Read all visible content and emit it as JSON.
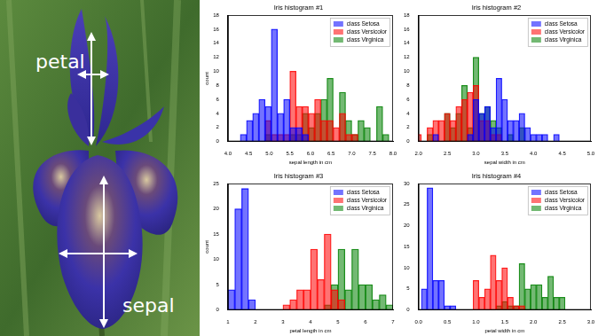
{
  "photo": {
    "petal_label": "petal",
    "sepal_label": "sepal"
  },
  "chart_data": [
    {
      "type": "histogram",
      "title": "Iris histogram #1",
      "xlabel": "sepal length in cm",
      "ylabel": "count",
      "bins": [
        4.3,
        4.45,
        4.6,
        4.75,
        4.9,
        5.05,
        5.2,
        5.35,
        5.5,
        5.65,
        5.8,
        5.95,
        6.1,
        6.25,
        6.4,
        6.55,
        6.7,
        6.85,
        7.0,
        7.15,
        7.3,
        7.45,
        7.6,
        7.75,
        7.9
      ],
      "series": [
        {
          "name": "class Setosa",
          "color": "#0000ff",
          "values": [
            1,
            3,
            4,
            6,
            5,
            16,
            4,
            6,
            2,
            2,
            1,
            0,
            0,
            0,
            0,
            0,
            0,
            0,
            0,
            0,
            0,
            0,
            0,
            0
          ]
        },
        {
          "name": "class Versicolor",
          "color": "#ff0000",
          "values": [
            0,
            0,
            0,
            0,
            3,
            1,
            1,
            1,
            10,
            5,
            5,
            4,
            6,
            3,
            3,
            2,
            4,
            1,
            1,
            0,
            0,
            0,
            0,
            0
          ]
        },
        {
          "name": "class Virginica",
          "color": "#008000",
          "values": [
            0,
            0,
            0,
            0,
            1,
            0,
            0,
            0,
            1,
            1,
            4,
            2,
            4,
            6,
            9,
            0,
            7,
            3,
            1,
            3,
            2,
            0,
            5,
            1
          ]
        }
      ],
      "xlim": [
        4,
        8
      ],
      "xticks": [
        {
          "value": 4,
          "label": "4.0"
        },
        4.5,
        {
          "value": 5,
          "label": "5.0"
        },
        5.5,
        {
          "value": 6,
          "label": "6.0"
        },
        6.5,
        {
          "value": 7,
          "label": "7.0"
        },
        7.5,
        {
          "value": 8,
          "label": "8.0"
        }
      ],
      "ylim": [
        0,
        18
      ],
      "yticks": [
        0,
        2,
        4,
        6,
        8,
        10,
        12,
        14,
        16,
        18
      ],
      "grid": false,
      "legend": "upper right"
    },
    {
      "type": "histogram",
      "title": "Iris histogram #2",
      "xlabel": "sepal width in cm",
      "bins": [
        1.95,
        2.05,
        2.15,
        2.25,
        2.35,
        2.45,
        2.55,
        2.65,
        2.75,
        2.85,
        2.95,
        3.05,
        3.15,
        3.25,
        3.35,
        3.45,
        3.55,
        3.65,
        3.75,
        3.85,
        3.95,
        4.05,
        4.15,
        4.25,
        4.35,
        4.45
      ],
      "series": [
        {
          "name": "class Setosa",
          "color": "#0000ff",
          "values": [
            0,
            0,
            0,
            1,
            0,
            0,
            0,
            0,
            0,
            1,
            6,
            4,
            5,
            2,
            9,
            6,
            3,
            3,
            4,
            2,
            1,
            1,
            1,
            0,
            1
          ]
        },
        {
          "name": "class Versicolor",
          "color": "#ff0000",
          "values": [
            1,
            0,
            2,
            3,
            3,
            4,
            3,
            5,
            6,
            7,
            8,
            3,
            3,
            1,
            1,
            0,
            0,
            0,
            0,
            0,
            0,
            0,
            0,
            0,
            0
          ]
        },
        {
          "name": "class Virginica",
          "color": "#008000",
          "values": [
            0,
            0,
            1,
            0,
            0,
            4,
            2,
            4,
            8,
            2,
            12,
            4,
            5,
            3,
            2,
            0,
            1,
            0,
            2,
            0,
            0,
            0,
            0,
            0,
            0
          ]
        }
      ],
      "xlim": [
        2,
        5
      ],
      "xticks": [
        {
          "value": 2,
          "label": "2.0"
        },
        2.5,
        {
          "value": 3,
          "label": "3.0"
        },
        3.5,
        {
          "value": 4,
          "label": "4.0"
        },
        4.5,
        {
          "value": 5,
          "label": "5.0"
        }
      ],
      "ylim": [
        0,
        18
      ],
      "yticks": [
        0,
        2,
        4,
        6,
        8,
        10,
        12,
        14,
        16,
        18
      ],
      "grid": false,
      "legend": "upper right"
    },
    {
      "type": "histogram",
      "title": "Iris histogram #3",
      "xlabel": "petal length in cm",
      "ylabel": "count",
      "bins": [
        1,
        1.25,
        1.5,
        1.75,
        2,
        2.25,
        2.5,
        2.75,
        3,
        3.25,
        3.5,
        3.75,
        4,
        4.25,
        4.5,
        4.75,
        5,
        5.25,
        5.5,
        5.75,
        6,
        6.25,
        6.5,
        6.75,
        7
      ],
      "series": [
        {
          "name": "class Setosa",
          "color": "#0000ff",
          "values": [
            4,
            20,
            24,
            2,
            0,
            0,
            0,
            0,
            0,
            0,
            0,
            0,
            0,
            0,
            0,
            0,
            0,
            0,
            0,
            0,
            0,
            0,
            0,
            0
          ]
        },
        {
          "name": "class Versicolor",
          "color": "#ff0000",
          "values": [
            0,
            0,
            0,
            0,
            0,
            0,
            0,
            0,
            1,
            2,
            4,
            4,
            12,
            6,
            15,
            4,
            2,
            0,
            0,
            0,
            0,
            0,
            0,
            0
          ]
        },
        {
          "name": "class Virginica",
          "color": "#008000",
          "values": [
            0,
            0,
            0,
            0,
            0,
            0,
            0,
            0,
            0,
            0,
            0,
            0,
            0,
            0,
            1,
            5,
            12,
            4,
            12,
            5,
            5,
            2,
            3,
            1
          ]
        }
      ],
      "xlim": [
        1,
        7
      ],
      "xticks": [
        1,
        2,
        3,
        4,
        5,
        6,
        7
      ],
      "ylim": [
        0,
        25
      ],
      "yticks": [
        0,
        5,
        10,
        15,
        20,
        25
      ],
      "grid": false,
      "legend": "upper right"
    },
    {
      "type": "histogram",
      "title": "Iris histogram #4",
      "xlabel": "petal width in cm",
      "bins": [
        0.05,
        0.15,
        0.25,
        0.35,
        0.45,
        0.55,
        0.65,
        0.75,
        0.85,
        0.95,
        1.05,
        1.15,
        1.25,
        1.35,
        1.45,
        1.55,
        1.65,
        1.75,
        1.85,
        1.95,
        2.05,
        2.15,
        2.25,
        2.35,
        2.45,
        2.55
      ],
      "series": [
        {
          "name": "class Setosa",
          "color": "#0000ff",
          "values": [
            5,
            29,
            7,
            7,
            1,
            1,
            0,
            0,
            0,
            0,
            0,
            0,
            0,
            0,
            0,
            0,
            0,
            0,
            0,
            0,
            0,
            0,
            0,
            0,
            0
          ]
        },
        {
          "name": "class Versicolor",
          "color": "#ff0000",
          "values": [
            0,
            0,
            0,
            0,
            0,
            0,
            0,
            0,
            0,
            7,
            3,
            5,
            13,
            7,
            10,
            3,
            1,
            1,
            0,
            0,
            0,
            0,
            0,
            0,
            0
          ]
        },
        {
          "name": "class Virginica",
          "color": "#008000",
          "values": [
            0,
            0,
            0,
            0,
            0,
            0,
            0,
            0,
            0,
            0,
            0,
            0,
            0,
            1,
            2,
            1,
            1,
            11,
            5,
            6,
            6,
            3,
            8,
            3,
            3
          ]
        }
      ],
      "xlim": [
        0,
        3
      ],
      "xticks": [
        {
          "value": 0,
          "label": "0.0"
        },
        0.5,
        {
          "value": 1,
          "label": "1.0"
        },
        1.5,
        {
          "value": 2,
          "label": "2.0"
        },
        2.5,
        {
          "value": 3,
          "label": "3.0"
        }
      ],
      "ylim": [
        0,
        30
      ],
      "yticks": [
        0,
        5,
        10,
        15,
        20,
        25,
        30
      ],
      "grid": false,
      "legend": "upper right"
    }
  ]
}
